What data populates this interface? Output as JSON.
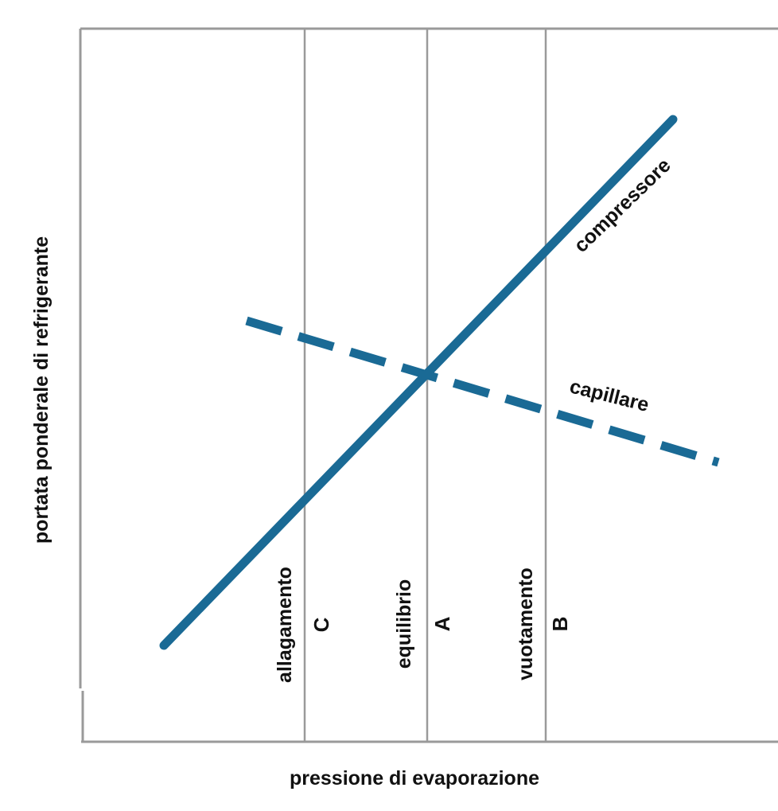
{
  "axes": {
    "xlabel": "pressione di evaporazione",
    "ylabel": "portata ponderale di refrigerante"
  },
  "curves": [
    {
      "id": "compressore",
      "label": "compressore",
      "style": "solid"
    },
    {
      "id": "capillare",
      "label": "capillare",
      "style": "dashed"
    }
  ],
  "states": [
    {
      "id": "C",
      "letter": "C",
      "label": "allagamento"
    },
    {
      "id": "A",
      "letter": "A",
      "label": "equilibrio"
    },
    {
      "id": "B",
      "letter": "B",
      "label": "vuotamento"
    }
  ],
  "colors": {
    "curve": "#1a6a95",
    "frame": "#9a9a9a",
    "text": "#111111"
  }
}
